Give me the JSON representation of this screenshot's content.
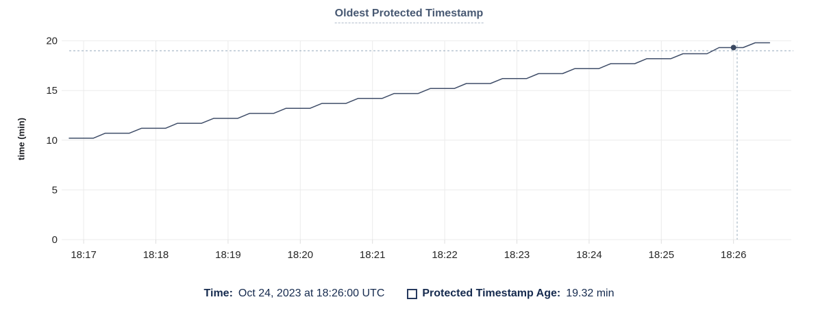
{
  "chart_data": {
    "type": "line",
    "title": "Oldest Protected Timestamp",
    "ylabel": "time (min)",
    "xlabel": "",
    "ylim": [
      0,
      20
    ],
    "y_ticks": [
      0,
      5,
      10,
      15,
      20
    ],
    "x_domain": [
      "18:16:48",
      "18:26:48"
    ],
    "x_ticks": [
      "18:17",
      "18:18",
      "18:19",
      "18:20",
      "18:21",
      "18:22",
      "18:23",
      "18:24",
      "18:25",
      "18:26"
    ],
    "grid": true,
    "legend_position": "bottom",
    "series": [
      {
        "name": "Protected Timestamp Age",
        "unit": "min",
        "points": [
          [
            "18:16:48",
            10.2
          ],
          [
            "18:17:08",
            10.2
          ],
          [
            "18:17:18",
            10.7
          ],
          [
            "18:17:38",
            10.7
          ],
          [
            "18:17:48",
            11.2
          ],
          [
            "18:18:08",
            11.2
          ],
          [
            "18:18:18",
            11.7
          ],
          [
            "18:18:38",
            11.7
          ],
          [
            "18:18:48",
            12.2
          ],
          [
            "18:19:08",
            12.2
          ],
          [
            "18:19:18",
            12.7
          ],
          [
            "18:19:38",
            12.7
          ],
          [
            "18:19:48",
            13.2
          ],
          [
            "18:20:08",
            13.2
          ],
          [
            "18:20:18",
            13.7
          ],
          [
            "18:20:38",
            13.7
          ],
          [
            "18:20:48",
            14.2
          ],
          [
            "18:21:08",
            14.2
          ],
          [
            "18:21:18",
            14.7
          ],
          [
            "18:21:38",
            14.7
          ],
          [
            "18:21:48",
            15.2
          ],
          [
            "18:22:08",
            15.2
          ],
          [
            "18:22:18",
            15.7
          ],
          [
            "18:22:38",
            15.7
          ],
          [
            "18:22:48",
            16.2
          ],
          [
            "18:23:08",
            16.2
          ],
          [
            "18:23:18",
            16.7
          ],
          [
            "18:23:38",
            16.7
          ],
          [
            "18:23:48",
            17.2
          ],
          [
            "18:24:08",
            17.2
          ],
          [
            "18:24:18",
            17.7
          ],
          [
            "18:24:38",
            17.7
          ],
          [
            "18:24:48",
            18.2
          ],
          [
            "18:25:08",
            18.2
          ],
          [
            "18:25:18",
            18.7
          ],
          [
            "18:25:38",
            18.7
          ],
          [
            "18:25:48",
            19.32
          ],
          [
            "18:26:08",
            19.32
          ],
          [
            "18:26:18",
            19.8
          ],
          [
            "18:26:30",
            19.8
          ]
        ]
      }
    ],
    "highlight_point": {
      "time": "18:26:00",
      "value": 19.32
    },
    "crosshair": {
      "time": "18:26:03",
      "value": 19.0
    }
  },
  "legend": {
    "time_label": "Time:",
    "time_value": "Oct 24, 2023 at 18:26:00 UTC",
    "series_label": "Protected Timestamp Age:",
    "series_value": "19.32 min"
  },
  "colors": {
    "line": "#3f4d68",
    "dot": "#3a4861",
    "grid": "#ebebeb",
    "tick": "#dedede",
    "crosshair": "#94a8ba",
    "axis_text": "#262626",
    "title": "#475872",
    "title_underline": "#aebaca",
    "legend_text": "#152a4e",
    "checkbox_border": "#26395e"
  }
}
